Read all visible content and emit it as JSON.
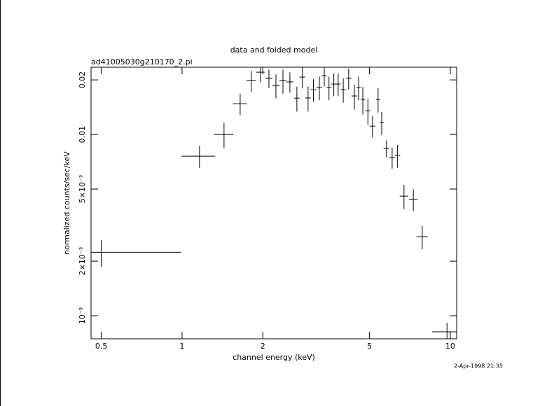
{
  "chart_data": {
    "type": "errorbar",
    "title": "data and folded model",
    "subtitle": "ad41005030g210170_2.pi",
    "xlabel": "channel energy (keV)",
    "ylabel": "normalized counts/sec/keV",
    "timestamp": "2-Apr-1998 21:35",
    "xscale": "log",
    "yscale": "log",
    "color": "#000000",
    "xlim": [
      0.458,
      10.56
    ],
    "ylim": [
      0.000746,
      0.0235
    ],
    "xticks": [
      0.5,
      1,
      2,
      5,
      10
    ],
    "yticks": [
      {
        "value": 0.001,
        "label": "10⁻³"
      },
      {
        "value": 0.002,
        "label": "2×10⁻³"
      },
      {
        "value": 0.005,
        "label": "5×10⁻³"
      },
      0.01,
      0.02
    ],
    "x": [
      0.5,
      1.162,
      1.434,
      1.647,
      1.813,
      1.961,
      2.108,
      2.239,
      2.378,
      2.524,
      2.68,
      2.81,
      2.95,
      3.09,
      3.25,
      3.39,
      3.53,
      3.68,
      3.82,
      3.99,
      4.18,
      4.39,
      4.55,
      4.72,
      4.93,
      5.13,
      5.38,
      5.55,
      5.78,
      6.07,
      6.36,
      6.72,
      7.28,
      7.86,
      9.72
    ],
    "xerr": [
      0.49,
      0.165,
      0.121,
      0.099,
      0.076,
      0.071,
      0.063,
      0.067,
      0.071,
      0.076,
      0.064,
      0.068,
      0.071,
      0.074,
      0.078,
      0.071,
      0.074,
      0.077,
      0.08,
      0.084,
      0.1,
      0.106,
      0.082,
      0.085,
      0.104,
      0.123,
      0.097,
      0.1,
      0.139,
      0.146,
      0.153,
      0.242,
      0.263,
      0.378,
      1.17
    ],
    "values": [
      0.00224,
      0.00759,
      0.01,
      0.01479,
      0.0198,
      0.02206,
      0.0204,
      0.01862,
      0.0198,
      0.0195,
      0.01587,
      0.02073,
      0.0159,
      0.01767,
      0.01814,
      0.02111,
      0.01814,
      0.01897,
      0.01897,
      0.01767,
      0.0204,
      0.01631,
      0.01814,
      0.0156,
      0.01353,
      0.01112,
      0.0156,
      0.01163,
      0.00837,
      0.00746,
      0.00766,
      0.00457,
      0.00438,
      0.00273,
      0.000815
    ],
    "yerr": [
      0.00038,
      0.00107,
      0.0016,
      0.002,
      0.0026,
      0.0027,
      0.0024,
      0.0028,
      0.003,
      0.0025,
      0.0025,
      0.0028,
      0.0025,
      0.0025,
      0.0027,
      0.0027,
      0.0027,
      0.0027,
      0.0027,
      0.0027,
      0.0027,
      0.0026,
      0.0027,
      0.0027,
      0.0022,
      0.0015,
      0.0024,
      0.0017,
      0.0009,
      0.001,
      0.0011,
      0.0007,
      0.0006,
      0.0004,
      0.0001
    ]
  }
}
